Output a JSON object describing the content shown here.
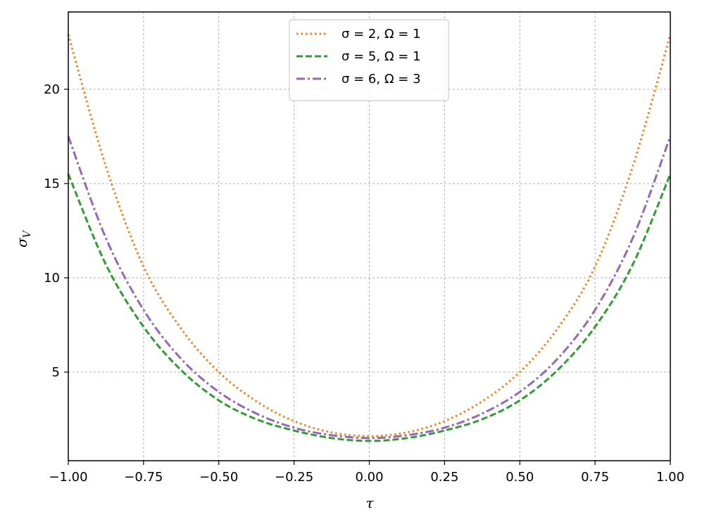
{
  "chart_data": {
    "type": "line",
    "xlabel": "τ",
    "ylabel": "σ_V",
    "xlim": [
      -1.0,
      1.0
    ],
    "ylim": [
      0.3,
      24.1
    ],
    "grid": true,
    "legend_position": "top-center",
    "x_ticks": [
      -1.0,
      -0.75,
      -0.5,
      -0.25,
      0.0,
      0.25,
      0.5,
      0.75,
      1.0
    ],
    "x_tick_labels": [
      "−1.00",
      "−0.75",
      "−0.50",
      "−0.25",
      "0.00",
      "0.25",
      "0.50",
      "0.75",
      "1.00"
    ],
    "y_ticks": [
      5,
      10,
      15,
      20
    ],
    "y_tick_labels": [
      "5",
      "10",
      "15",
      "20"
    ],
    "x": [
      -1.0,
      -0.875,
      -0.75,
      -0.625,
      -0.5,
      -0.375,
      -0.25,
      -0.125,
      0.0,
      0.125,
      0.25,
      0.375,
      0.5,
      0.625,
      0.75,
      0.875,
      1.0
    ],
    "series": [
      {
        "name": "σ = 2, Ω = 1",
        "color": "#ff7f0e",
        "dash": "dotted",
        "values": [
          22.9,
          15.9,
          10.6,
          7.3,
          5.0,
          3.45,
          2.4,
          1.8,
          1.6,
          1.8,
          2.4,
          3.45,
          5.0,
          7.3,
          10.6,
          15.9,
          22.9
        ]
      },
      {
        "name": "σ = 5, Ω = 1",
        "color": "#2ca02c",
        "dash": "dashed",
        "values": [
          15.5,
          10.7,
          7.4,
          5.1,
          3.5,
          2.5,
          1.9,
          1.5,
          1.35,
          1.5,
          1.9,
          2.5,
          3.5,
          5.1,
          7.4,
          10.7,
          15.5
        ]
      },
      {
        "name": "σ = 6, Ω = 3",
        "color": "#9467bd",
        "dash": "dashdot",
        "values": [
          17.5,
          12.1,
          8.3,
          5.7,
          3.95,
          2.8,
          2.05,
          1.65,
          1.5,
          1.65,
          2.05,
          2.8,
          3.95,
          5.7,
          8.3,
          12.1,
          17.5
        ]
      }
    ]
  }
}
